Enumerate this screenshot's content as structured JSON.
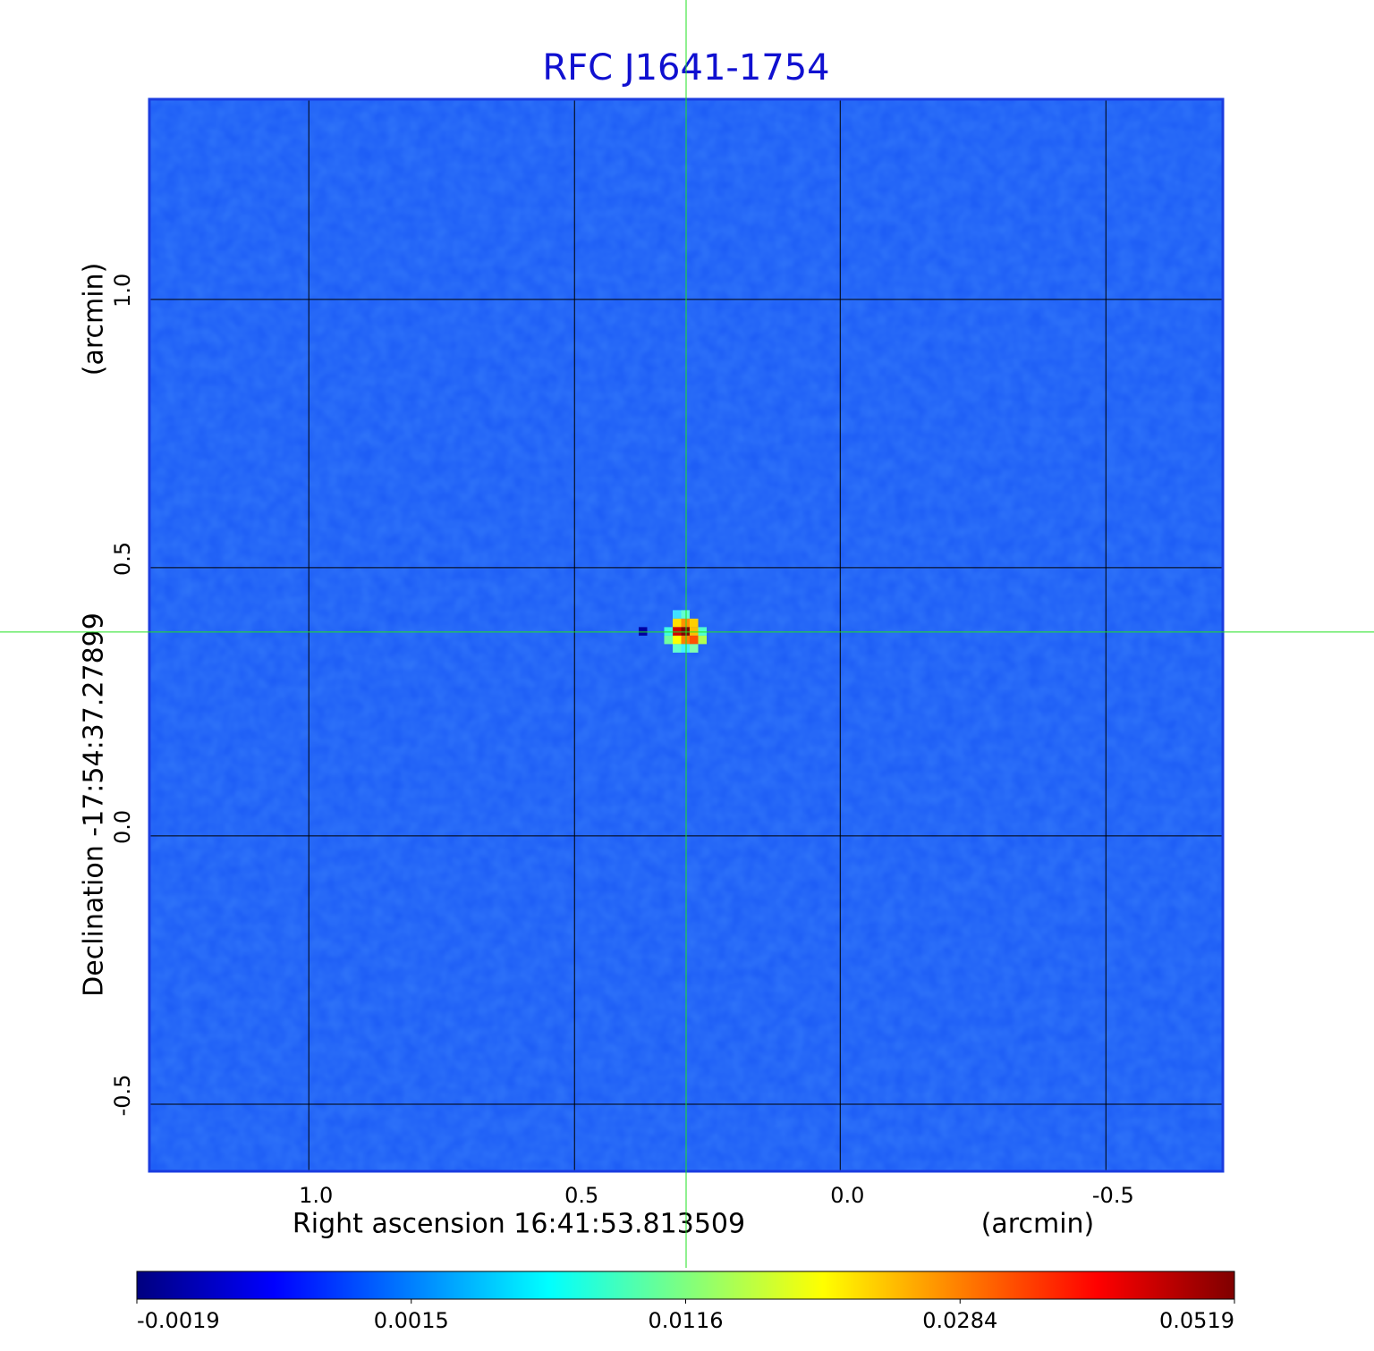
{
  "chart_data": {
    "type": "image",
    "title": "RFC J1641-1754",
    "x_label": "Right ascension  16:41:53.813509",
    "x_unit": "(arcmin)",
    "y_label": "Declination  -17:54:37.27899",
    "y_unit": "(arcmin)",
    "xlim": [
      1.3,
      -0.72
    ],
    "ylim": [
      -0.625,
      1.373
    ],
    "xticks": [
      {
        "value": 1,
        "label": "1.0"
      },
      0.5,
      {
        "value": 0,
        "label": "0.0"
      },
      -0.5
    ],
    "yticks": [
      {
        "value": 1,
        "label": "1.0"
      },
      0.5,
      {
        "value": 0,
        "label": "0.0"
      },
      -0.5
    ],
    "grid": true,
    "image_color": "#1e5ef6",
    "crosshair": [
      0.29,
      0.38
    ],
    "colorbar": {
      "ticks": [
        -0.0019,
        0.0015,
        0.0116,
        0.0284,
        0.0519
      ],
      "colors": [
        "#00007f",
        "#0000ff",
        "#007fff",
        "#00ffff",
        "#7fff7f",
        "#ffff00",
        "#ff7f00",
        "#ff0000",
        "#7f0000"
      ]
    }
  }
}
